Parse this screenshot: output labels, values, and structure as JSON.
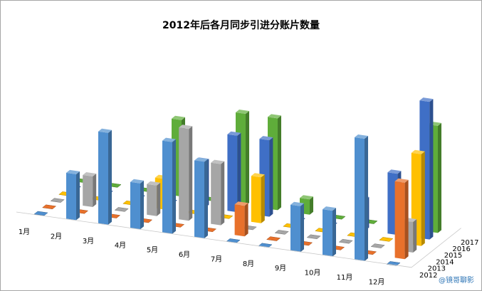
{
  "watermark": "@镜哥聊影",
  "chart_data": {
    "type": "bar3d",
    "title": "2012年后各月同步引进分账片数量",
    "categories": [
      "1月",
      "2月",
      "3月",
      "4月",
      "5月",
      "6月",
      "7月",
      "8月",
      "9月",
      "10月",
      "11月",
      "12月"
    ],
    "series": [
      {
        "name": "2012",
        "color": "#4f8fcf",
        "values": [
          0,
          3,
          6,
          3,
          6,
          5,
          0,
          0,
          3,
          3,
          8,
          0
        ]
      },
      {
        "name": "2013",
        "color": "#e8712b",
        "values": [
          0,
          0,
          0,
          0,
          0,
          0,
          2,
          0,
          0,
          0,
          0,
          5
        ]
      },
      {
        "name": "2014",
        "color": "#a6a6a6",
        "values": [
          0,
          2,
          0,
          2,
          6,
          4,
          0,
          0,
          0,
          0,
          0,
          2
        ]
      },
      {
        "name": "2015",
        "color": "#ffc000",
        "values": [
          0,
          0,
          0,
          2,
          0,
          0,
          3,
          0,
          0,
          0,
          0,
          6
        ]
      },
      {
        "name": "2016",
        "color": "#3f6fc6",
        "values": [
          0,
          0,
          0,
          0,
          3,
          5,
          5,
          0,
          0,
          2,
          4,
          9
        ]
      },
      {
        "name": "2017",
        "color": "#5fad3a",
        "values": [
          0,
          0,
          0,
          5,
          0,
          6,
          6,
          1,
          0,
          0,
          0,
          7
        ]
      }
    ],
    "zlim": [
      0,
      10
    ],
    "legend": "right-depth-axis",
    "grid": false
  }
}
